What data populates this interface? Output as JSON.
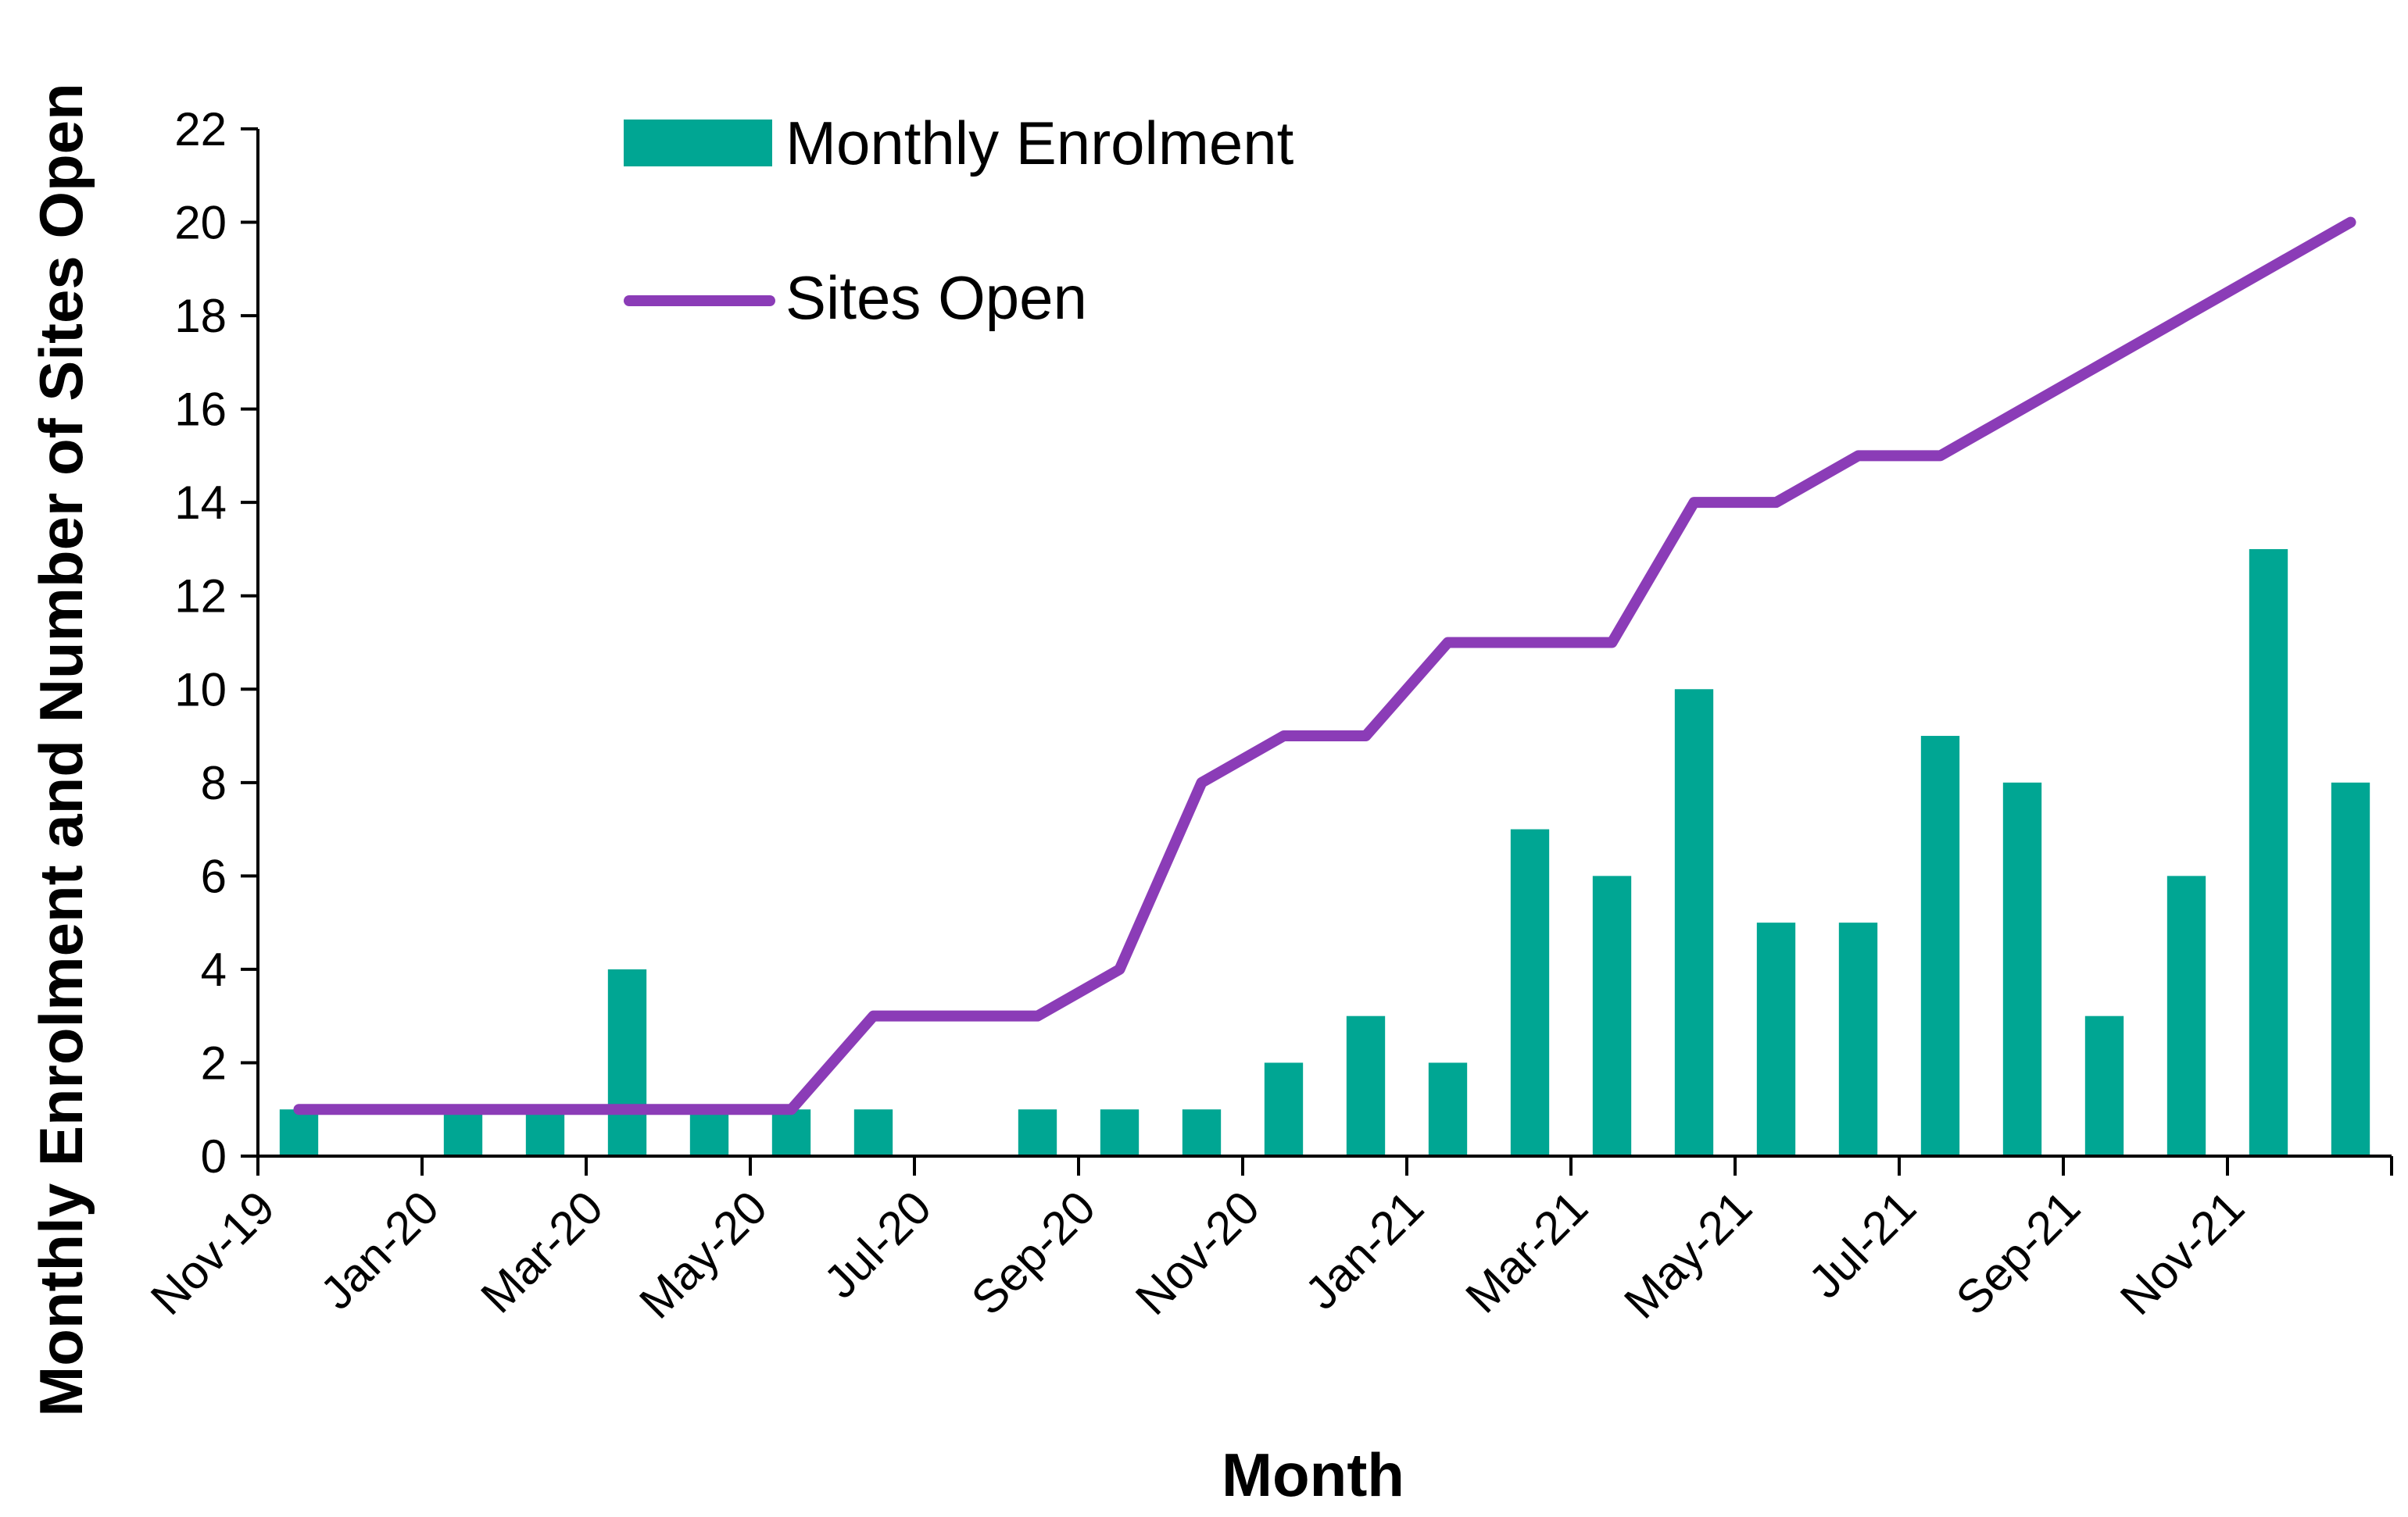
{
  "chart_data": {
    "type": "bar+line",
    "title": "",
    "xlabel": "Month",
    "ylabel": "Monthly Enrolment and Number of Sites Open",
    "ylim": [
      0,
      22
    ],
    "yticks": [
      0,
      2,
      4,
      6,
      8,
      10,
      12,
      14,
      16,
      18,
      20,
      22
    ],
    "months": [
      "Nov-19",
      "Dec-19",
      "Jan-20",
      "Feb-20",
      "Mar-20",
      "Apr-20",
      "May-20",
      "Jun-20",
      "Jul-20",
      "Aug-20",
      "Sep-20",
      "Oct-20",
      "Nov-20",
      "Dec-20",
      "Jan-21",
      "Feb-21",
      "Mar-21",
      "Apr-21",
      "May-21",
      "Jun-21",
      "Jul-21",
      "Aug-21",
      "Sep-21",
      "Oct-21",
      "Nov-21",
      "Dec-21"
    ],
    "xtick_labels": [
      "Nov-19",
      "Jan-20",
      "Mar-20",
      "May-20",
      "Jul-20",
      "Sep-20",
      "Nov-20",
      "Jan-21",
      "Mar-21",
      "May-21",
      "Jul-21",
      "Sep-21",
      "Nov-21"
    ],
    "series": [
      {
        "name": "Monthly Enrolment",
        "kind": "bar",
        "color": "#00a693",
        "values": [
          1,
          0,
          1,
          1,
          4,
          1,
          1,
          1,
          0,
          1,
          1,
          1,
          2,
          3,
          2,
          7,
          6,
          10,
          5,
          5,
          9,
          8,
          3,
          6,
          13,
          8
        ]
      },
      {
        "name": "Sites Open",
        "kind": "line",
        "color": "#8b3cb7",
        "values": [
          1,
          1,
          1,
          1,
          1,
          1,
          1,
          3,
          3,
          3,
          4,
          8,
          9,
          9,
          11,
          11,
          11,
          14,
          14,
          15,
          15,
          16,
          17,
          18,
          19,
          20
        ]
      }
    ],
    "legend_position": "top-left"
  }
}
